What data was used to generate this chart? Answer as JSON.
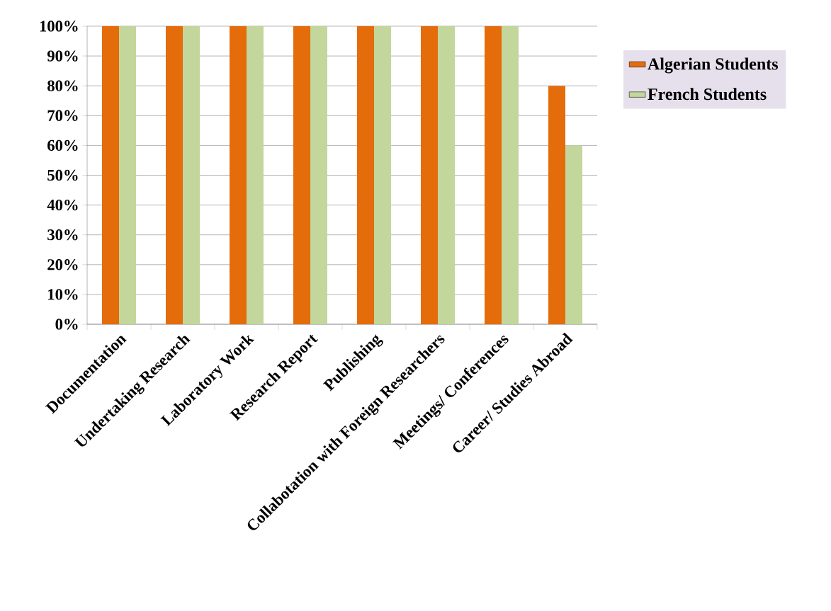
{
  "chart_data": {
    "type": "bar",
    "categories": [
      "Documentation",
      "Undertaking Research",
      "Laboratory Work",
      "Research Report",
      "Publishing",
      "Collabotation with Foreign Researchers",
      "Meetings/ Conferences",
      "Career/ Studies Abroad"
    ],
    "series": [
      {
        "name": "Algerian Students",
        "color": "#e46c0a",
        "values": [
          100,
          100,
          100,
          100,
          100,
          100,
          100,
          80
        ]
      },
      {
        "name": "French Students",
        "color": "#c3d69b",
        "values": [
          100,
          100,
          100,
          100,
          100,
          100,
          100,
          60
        ]
      }
    ],
    "ylim": [
      0,
      100
    ],
    "yticks": [
      {
        "value": 0,
        "label": "0%"
      },
      {
        "value": 10,
        "label": "10%"
      },
      {
        "value": 20,
        "label": "20%"
      },
      {
        "value": 30,
        "label": "30%"
      },
      {
        "value": 40,
        "label": "40%"
      },
      {
        "value": 50,
        "label": "50%"
      },
      {
        "value": 60,
        "label": "60%"
      },
      {
        "value": 70,
        "label": "70%"
      },
      {
        "value": 80,
        "label": "80%"
      },
      {
        "value": 90,
        "label": "90%"
      },
      {
        "value": 100,
        "label": "100%"
      }
    ],
    "grid": "y",
    "legend": "right"
  }
}
